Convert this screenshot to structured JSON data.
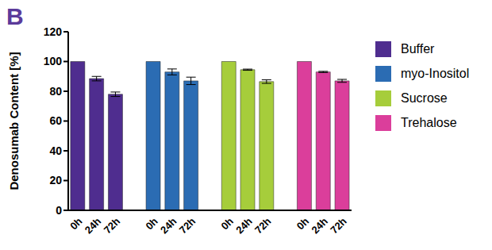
{
  "chart_data": {
    "type": "bar",
    "title": "B",
    "y_label": "Denosumab Content [%]",
    "categories": [
      "0h",
      "24h",
      "72h",
      null,
      "0h",
      "24h",
      "72h",
      null,
      "0h",
      "24h",
      "72h",
      null,
      "0h",
      "24h",
      "72h"
    ],
    "series": [
      {
        "name": "Buffer",
        "color": "#4f2d8f",
        "values": [
          100,
          88.5,
          78,
          null,
          null,
          null,
          null,
          null,
          null,
          null,
          null,
          null,
          null,
          null,
          null
        ],
        "errors": [
          0,
          1.5,
          1.5,
          null,
          null,
          null,
          null,
          null,
          null,
          null,
          null,
          null,
          null,
          null,
          null
        ]
      },
      {
        "name": "myo-Inositol",
        "color": "#2b6cb3",
        "values": [
          null,
          null,
          null,
          null,
          100,
          93,
          87,
          null,
          null,
          null,
          null,
          null,
          null,
          null,
          null
        ],
        "errors": [
          null,
          null,
          null,
          null,
          0,
          2,
          2.5,
          null,
          null,
          null,
          null,
          null,
          null,
          null,
          null
        ]
      },
      {
        "name": "Sucrose",
        "color": "#a6cd3b",
        "values": [
          null,
          null,
          null,
          null,
          null,
          null,
          null,
          null,
          100,
          94.5,
          86.5,
          null,
          null,
          null,
          null
        ],
        "errors": [
          null,
          null,
          null,
          null,
          null,
          null,
          null,
          null,
          0,
          0.4,
          1.2,
          null,
          null,
          null,
          null
        ]
      },
      {
        "name": "Trehalose",
        "color": "#db3e9b",
        "values": [
          null,
          null,
          null,
          null,
          null,
          null,
          null,
          null,
          null,
          null,
          null,
          null,
          100,
          93,
          87
        ],
        "errors": [
          null,
          null,
          null,
          null,
          null,
          null,
          null,
          null,
          null,
          null,
          null,
          null,
          0,
          0.4,
          1
        ]
      }
    ],
    "ylim": [
      0,
      120
    ],
    "yticks": [
      0,
      20,
      40,
      60,
      80,
      100,
      120
    ],
    "legend": "right"
  }
}
